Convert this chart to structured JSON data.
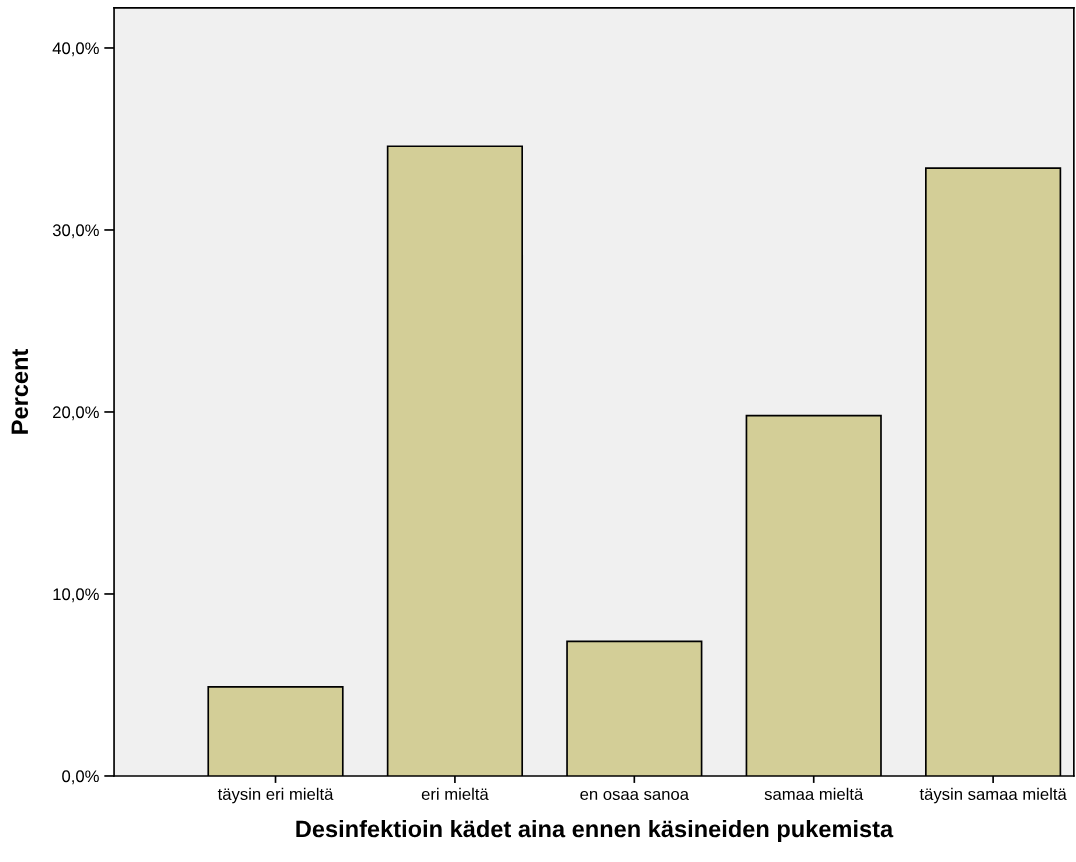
{
  "chart_data": {
    "type": "bar",
    "xlabel": "Desinfektioin kädet aina ennen käsineiden pukemista",
    "ylabel": "Percent",
    "categories": [
      "täysin eri mieltä",
      "eri mieltä",
      "en osaa sanoa",
      "samaa mieltä",
      "täysin samaa mieltä"
    ],
    "values": [
      4.9,
      34.6,
      7.4,
      19.8,
      33.4
    ],
    "color": "#d3ce97",
    "ylim": [
      0,
      42.2
    ],
    "yticks": [
      {
        "value": 0,
        "label": "0,0%"
      },
      {
        "value": 10,
        "label": "10,0%"
      },
      {
        "value": 20,
        "label": "20,0%"
      },
      {
        "value": 30,
        "label": "30,0%"
      },
      {
        "value": 40,
        "label": "40,0%"
      }
    ],
    "grid": false
  }
}
